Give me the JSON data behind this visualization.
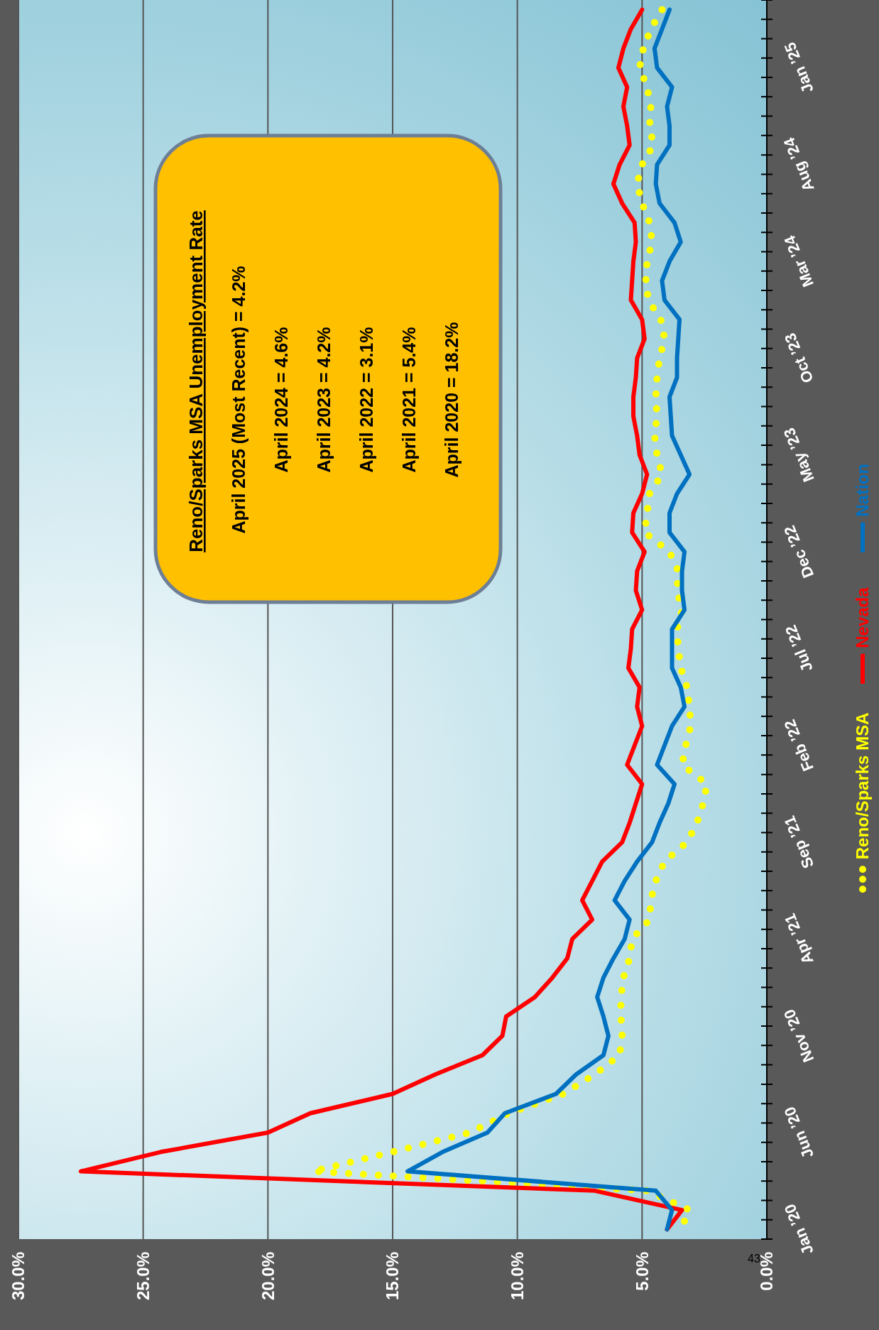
{
  "chart_data": {
    "type": "line",
    "orientation": "horizontal",
    "categories": [
      null,
      null,
      null,
      "Jan ’25",
      null,
      null,
      null,
      null,
      "Aug ’24",
      null,
      null,
      null,
      null,
      "Mar ’24",
      null,
      null,
      null,
      null,
      "Oct ’23",
      null,
      null,
      null,
      null,
      "May ’23",
      null,
      null,
      null,
      null,
      "Dec ’22",
      null,
      null,
      null,
      null,
      "Jul ’22",
      null,
      null,
      null,
      null,
      "Feb ’22",
      null,
      null,
      null,
      null,
      "Sep ’21",
      null,
      null,
      null,
      null,
      "Apr ’21",
      null,
      null,
      null,
      null,
      "Nov ’20",
      null,
      null,
      null,
      null,
      "Jun ’20",
      null,
      null,
      null,
      null,
      "Jan ’20"
    ],
    "series": [
      {
        "name": "Reno/Sparks MSA",
        "color": "#ffff00",
        "line_style": "dotted",
        "values": [
          4.2,
          4.65,
          4.95,
          5.1,
          4.8,
          4.65,
          4.7,
          4.55,
          5.0,
          5.2,
          5.0,
          4.7,
          4.6,
          4.8,
          4.85,
          4.75,
          4.25,
          4.1,
          4.3,
          4.4,
          4.45,
          4.4,
          4.5,
          4.4,
          4.2,
          4.7,
          4.8,
          4.9,
          3.9,
          3.55,
          3.6,
          3.4,
          3.6,
          3.55,
          3.45,
          3.2,
          3.1,
          3.05,
          3.25,
          3.4,
          2.4,
          2.55,
          2.8,
          3.2,
          4.1,
          4.45,
          4.65,
          4.7,
          5.4,
          5.5,
          5.75,
          5.85,
          5.85,
          5.8,
          5.9,
          6.9,
          8.15,
          10.35,
          11.9,
          15.0,
          18.2,
          4.8,
          3.1,
          3.45
        ]
      },
      {
        "name": "Nevada",
        "color": "#ff0000",
        "values": [
          5.0,
          5.45,
          5.75,
          5.95,
          5.6,
          5.75,
          5.6,
          5.5,
          5.9,
          6.15,
          5.8,
          5.3,
          5.25,
          5.35,
          5.4,
          5.45,
          5.0,
          4.9,
          5.2,
          5.25,
          5.35,
          5.35,
          5.2,
          5.1,
          4.8,
          5.0,
          5.35,
          5.4,
          4.9,
          5.2,
          5.25,
          5.0,
          5.4,
          5.45,
          5.55,
          5.1,
          5.2,
          5.0,
          5.3,
          5.6,
          5.0,
          5.25,
          5.5,
          5.8,
          6.6,
          7.0,
          7.4,
          7.0,
          7.8,
          8.0,
          8.6,
          9.3,
          10.45,
          10.6,
          11.4,
          13.3,
          15.0,
          18.3,
          20.0,
          24.3,
          27.5,
          6.9,
          3.4,
          4.0
        ]
      },
      {
        "name": "Nation",
        "color": "#0070c0",
        "values": [
          3.9,
          4.2,
          4.5,
          4.4,
          3.8,
          4.0,
          3.9,
          3.9,
          4.4,
          4.45,
          4.3,
          3.7,
          3.45,
          3.9,
          4.2,
          4.1,
          3.5,
          3.55,
          3.6,
          3.6,
          3.9,
          3.85,
          3.8,
          3.45,
          3.1,
          3.6,
          3.9,
          3.9,
          3.3,
          3.4,
          3.4,
          3.3,
          3.8,
          3.8,
          3.8,
          3.45,
          3.3,
          3.8,
          4.1,
          4.4,
          3.7,
          3.95,
          4.3,
          4.6,
          5.2,
          5.7,
          6.1,
          5.5,
          5.7,
          6.15,
          6.55,
          6.8,
          6.55,
          6.35,
          6.55,
          7.65,
          8.45,
          10.5,
          11.2,
          13.0,
          14.4,
          4.45,
          3.8,
          4.0
        ]
      }
    ],
    "xlim": [
      30,
      0
    ],
    "xticks": [
      {
        "value": 0,
        "label": "0.0%"
      },
      {
        "value": 5,
        "label": "5.0%"
      },
      {
        "value": 10,
        "label": "10.0%"
      },
      {
        "value": 15,
        "label": "15.0%"
      },
      {
        "value": 20,
        "label": "20.0%"
      },
      {
        "value": 25,
        "label": "25.0%"
      },
      {
        "value": 30,
        "label": "30.0%"
      }
    ],
    "grid": "x",
    "legend": "right",
    "annotations": [
      "Reno/Sparks MSA Unemployment Rate",
      "April 2025 (Most Recent) = 4.2%",
      "April 2024 = 4.6%",
      "April 2023 = 4.2%",
      "April 2022 = 3.1%",
      "April 2021 = 5.4%",
      "April 2020 = 18.2%",
      "43"
    ]
  }
}
